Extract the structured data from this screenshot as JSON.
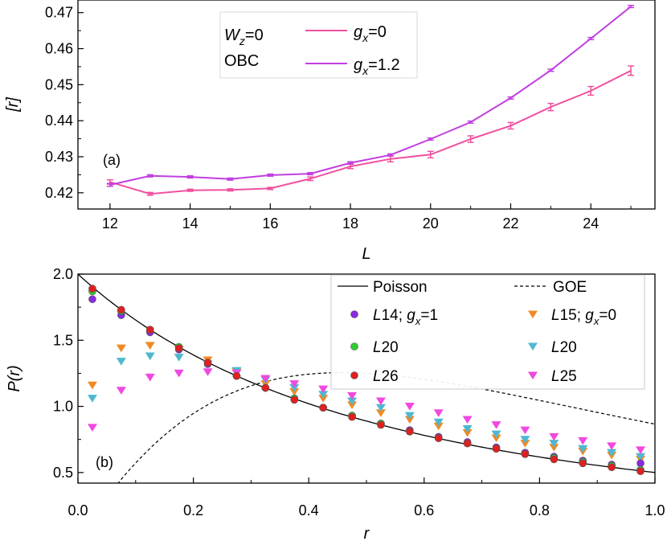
{
  "chart_data": [
    {
      "panel_label": "(a)",
      "type": "line",
      "xlabel": "L",
      "ylabel": "[r]",
      "xlim": [
        11.2,
        25.6
      ],
      "ylim": [
        0.4155,
        0.4735
      ],
      "xticks": [
        12,
        14,
        16,
        18,
        20,
        22,
        24
      ],
      "xtick_labels": [
        "12",
        "14",
        "16",
        "18",
        "20",
        "22",
        "24"
      ],
      "yticks": [
        0.42,
        0.43,
        0.44,
        0.45,
        0.46,
        0.47
      ],
      "ytick_labels": [
        "0.42",
        "0.43",
        "0.44",
        "0.45",
        "0.46",
        "0.47"
      ],
      "grid": false,
      "legend_placement": "top-left",
      "legend_header": {
        "line1_var": "W",
        "line1_sub": "z",
        "line1_rest": "=0",
        "line2": "OBC"
      },
      "x": [
        12,
        13,
        14,
        15,
        16,
        17,
        18,
        19,
        20,
        21,
        22,
        23,
        24,
        25
      ],
      "series": [
        {
          "legend_var": "g",
          "legend_sub": "x",
          "legend_rest": "=0",
          "color": "#f0509e",
          "values": [
            0.423,
            0.4197,
            0.4207,
            0.4208,
            0.4212,
            0.4239,
            0.4273,
            0.4294,
            0.4306,
            0.4349,
            0.4386,
            0.4438,
            0.4483,
            0.4539
          ],
          "errors": [
            0.0006,
            0.0004,
            0.0003,
            0.0003,
            0.0003,
            0.0005,
            0.0006,
            0.0008,
            0.0009,
            0.0009,
            0.0009,
            0.001,
            0.0012,
            0.0013
          ]
        },
        {
          "legend_var": "g",
          "legend_sub": "x",
          "legend_rest": "=1.2",
          "color": "#c13ee0",
          "values": [
            0.4222,
            0.4247,
            0.4244,
            0.4238,
            0.4249,
            0.4253,
            0.4283,
            0.4305,
            0.4349,
            0.4396,
            0.4463,
            0.454,
            0.4628,
            0.4717
          ],
          "errors": [
            0.0004,
            0.0003,
            0.0003,
            0.0003,
            0.0003,
            0.0003,
            0.0003,
            0.0003,
            0.0003,
            0.0003,
            0.0003,
            0.0003,
            0.0003,
            0.0003
          ]
        }
      ]
    },
    {
      "panel_label": "(b)",
      "type": "scatter",
      "xlabel": "r",
      "ylabel": "P(r)",
      "xlim": [
        0,
        1.0
      ],
      "ylim": [
        0.42,
        2.0
      ],
      "xticks": [
        0.0,
        0.2,
        0.4,
        0.6,
        0.8,
        1.0
      ],
      "xtick_labels": [
        "0.0",
        "0.2",
        "0.4",
        "0.6",
        "0.8",
        "1.0"
      ],
      "yticks": [
        0.5,
        1.0,
        1.5,
        2.0
      ],
      "ytick_labels": [
        "0.5",
        "1.0",
        "1.5",
        "2.0"
      ],
      "grid": false,
      "legend_placement": "top-right",
      "curves": [
        {
          "name": "Poisson",
          "style": "solid"
        },
        {
          "name": "GOE",
          "style": "dashed"
        }
      ],
      "x": [
        0.025,
        0.075,
        0.125,
        0.175,
        0.225,
        0.275,
        0.325,
        0.375,
        0.425,
        0.475,
        0.525,
        0.575,
        0.625,
        0.675,
        0.725,
        0.775,
        0.825,
        0.875,
        0.925,
        0.975
      ],
      "series": [
        {
          "legend_var": "L",
          "legend_rest": "14; ",
          "legend_var2": "g",
          "legend_sub2": "x",
          "legend_rest2": "=1",
          "marker": "circle",
          "color": "#8a2be2",
          "values": [
            1.81,
            1.69,
            1.56,
            1.43,
            1.32,
            1.23,
            1.14,
            1.06,
            0.99,
            0.93,
            0.87,
            0.82,
            0.77,
            0.73,
            0.69,
            0.65,
            0.62,
            0.59,
            0.56,
            0.57
          ]
        },
        {
          "legend_var": "L",
          "legend_rest": "20",
          "marker": "circle",
          "color": "#2ecc2e",
          "values": [
            1.87,
            1.72,
            1.58,
            1.45,
            1.33,
            1.23,
            1.14,
            1.06,
            0.99,
            0.93,
            0.87,
            0.81,
            0.76,
            0.72,
            0.68,
            0.64,
            0.61,
            0.58,
            0.55,
            0.52
          ]
        },
        {
          "legend_var": "L",
          "legend_rest": "26",
          "marker": "circle",
          "color": "#e02020",
          "values": [
            1.89,
            1.73,
            1.58,
            1.44,
            1.33,
            1.23,
            1.14,
            1.05,
            0.99,
            0.92,
            0.86,
            0.81,
            0.76,
            0.72,
            0.68,
            0.64,
            0.6,
            0.57,
            0.54,
            0.51
          ]
        },
        {
          "legend_var": "L",
          "legend_rest": "15; ",
          "legend_var2": "g",
          "legend_sub2": "x",
          "legend_rest2": "=0",
          "marker": "triangle-down",
          "color": "#f08a24",
          "values": [
            1.16,
            1.44,
            1.46,
            1.43,
            1.35,
            1.26,
            1.17,
            1.11,
            1.06,
            1.01,
            0.95,
            0.9,
            0.85,
            0.8,
            0.76,
            0.72,
            0.69,
            0.66,
            0.63,
            0.6
          ]
        },
        {
          "legend_var": "L",
          "legend_rest": "20",
          "marker": "triangle-down",
          "color": "#4fb8d0",
          "values": [
            1.06,
            1.34,
            1.38,
            1.37,
            1.32,
            1.27,
            1.2,
            1.14,
            1.09,
            1.04,
            0.99,
            0.93,
            0.88,
            0.83,
            0.79,
            0.75,
            0.72,
            0.68,
            0.65,
            0.62
          ]
        },
        {
          "legend_var": "L",
          "legend_rest": "25",
          "marker": "triangle-down",
          "color": "#f048e0",
          "values": [
            0.84,
            1.12,
            1.22,
            1.25,
            1.26,
            1.25,
            1.21,
            1.17,
            1.13,
            1.08,
            1.04,
            1.0,
            0.95,
            0.9,
            0.86,
            0.82,
            0.77,
            0.74,
            0.7,
            0.67
          ]
        }
      ]
    }
  ]
}
